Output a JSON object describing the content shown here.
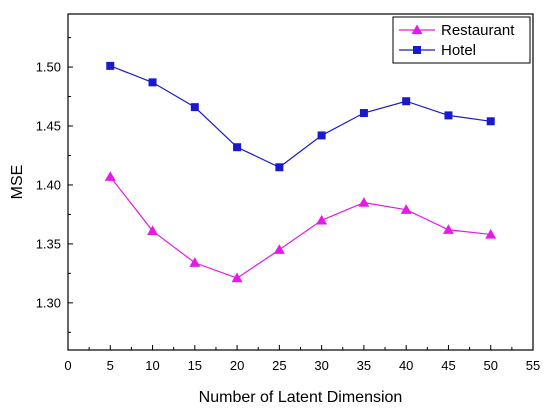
{
  "chart_data": {
    "type": "line",
    "title": "",
    "xlabel": "Number of Latent Dimension",
    "ylabel": "MSE",
    "xlim": [
      0,
      55
    ],
    "ylim": [
      1.26,
      1.545
    ],
    "xticks": [
      0,
      5,
      10,
      15,
      20,
      25,
      30,
      35,
      40,
      45,
      50,
      55
    ],
    "yticks": [
      1.3,
      1.35,
      1.4,
      1.45,
      1.5
    ],
    "ytick_labels": [
      "1.30",
      "1.35",
      "1.40",
      "1.45",
      "1.50"
    ],
    "x": [
      5,
      10,
      15,
      20,
      25,
      30,
      35,
      40,
      45,
      50
    ],
    "legend_position": "top-right",
    "grid": false,
    "series": [
      {
        "name": "Restaurant",
        "color": "#e619e6",
        "marker": "triangle",
        "values": [
          1.407,
          1.361,
          1.334,
          1.321,
          1.345,
          1.37,
          1.385,
          1.379,
          1.362,
          1.358
        ]
      },
      {
        "name": "Hotel",
        "color": "#1a1acc",
        "marker": "square",
        "values": [
          1.501,
          1.487,
          1.466,
          1.432,
          1.415,
          1.442,
          1.461,
          1.471,
          1.459,
          1.454
        ]
      }
    ]
  }
}
